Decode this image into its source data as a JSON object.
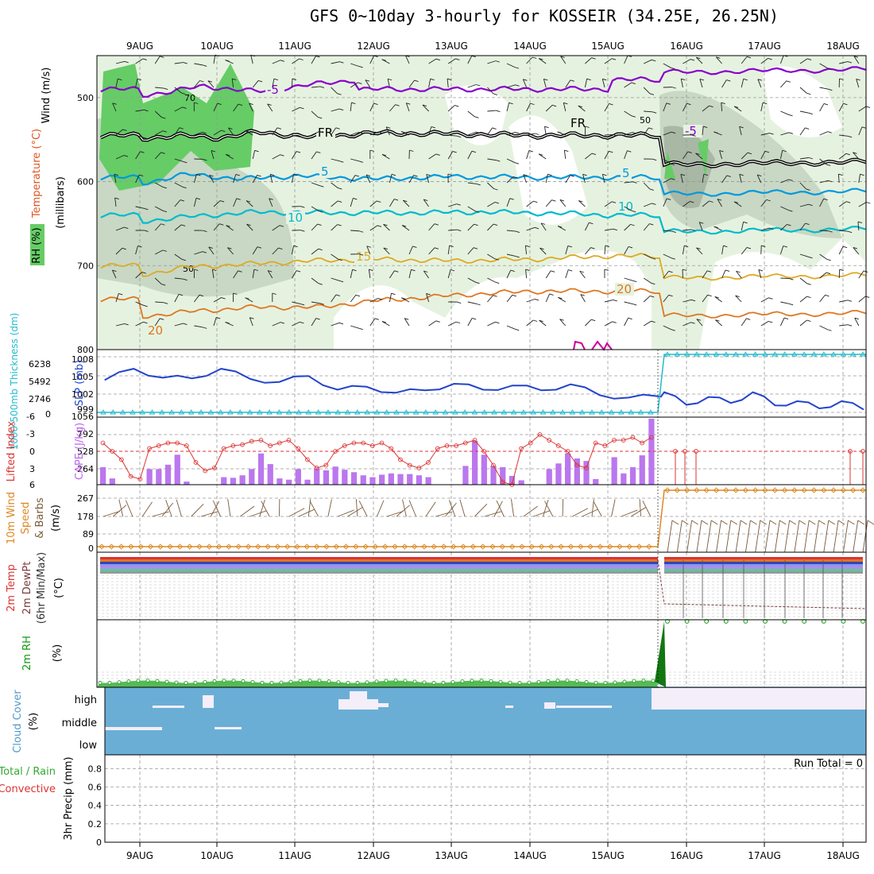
{
  "title": "GFS 0~10day 3-hourly for KOSSEIR (34.25E, 26.25N)",
  "colors": {
    "rh_light": "#e6f2e0",
    "rh_mid": "#c8d8c4",
    "rh_dark": "#a8b8a4",
    "rh_sat": "#66cc66",
    "temp_purple": "#8800cc",
    "temp_blue": "#0099dd",
    "temp_cyan": "#00bbcc",
    "temp_gold": "#ddaa22",
    "temp_orange": "#dd7722",
    "freeze": "#000000",
    "slp": "#2244cc",
    "thick": "#22bbcc",
    "cape": "#bb77ee",
    "li": "#dd3333",
    "wind": "#dd8822",
    "rh2m": "#119911",
    "cloud": "#6aaed6",
    "cloud_gap": "#f4eef8"
  },
  "chart_data": {
    "type": "meteogram",
    "dates": [
      "9AUG",
      "10AUG",
      "11AUG",
      "12AUG",
      "13AUG",
      "14AUG",
      "15AUG",
      "16AUG",
      "17AUG",
      "18AUG"
    ],
    "panels": [
      {
        "id": "upper_air",
        "labels": {
          "wind": "Wind (m/s)",
          "temp": "Temperature (°C)",
          "rh": "RH (%)",
          "unit": "(millibars)"
        },
        "yticks": [
          500,
          600,
          700,
          800
        ],
        "ylim": [
          450,
          800
        ],
        "contours": {
          "freezing": {
            "label": "FR",
            "before": 545,
            "after": 580
          },
          "iso_minus5": {
            "label": "-5",
            "before": 490,
            "after": 470
          },
          "iso_5": {
            "label": "5",
            "before": 595,
            "after": 615
          },
          "iso_10": {
            "label": "10",
            "before": 640,
            "after": 660
          },
          "iso_15": {
            "label": "15",
            "before": 700,
            "after": 715
          },
          "iso_20": {
            "label": "20",
            "before": 740,
            "after": 760
          }
        },
        "rh_labels": [
          "70",
          "50",
          "50"
        ]
      },
      {
        "id": "slp_thickness",
        "labels": {
          "slp": "SLP (mb)",
          "thick": "1000-500mb Thickness (dm)"
        },
        "yticks_left": [
          "6238",
          "5492",
          "2746",
          "0"
        ],
        "yticks_right": [
          "1008",
          "1005",
          "1002",
          "999"
        ],
        "slp": [
          1004.5,
          1006.4,
          1004.9,
          1004.8,
          1006.4,
          1004.7,
          1004.2,
          1005.2,
          1002.9,
          1003.4,
          1002.4,
          1002.8,
          1003.9,
          1002.9,
          1003.6,
          1002.8,
          1003.8,
          1002.0,
          1001.6,
          1001.8,
          1002.5,
          1000.4,
          1001.7,
          1000.7,
          1002.5,
          1000.3,
          1001.0,
          999.8,
          1001.0,
          999.6
        ]
      },
      {
        "id": "cape_li",
        "labels": {
          "cape": "CAPE (J/kg)",
          "li": "Lifted Index"
        },
        "yticks_left": [
          "-6",
          "-3",
          "0",
          "3",
          "6"
        ],
        "yticks_right": [
          "1056",
          "792",
          "528",
          "264"
        ],
        "cape": [
          280,
          100,
          0,
          0,
          0,
          250,
          250,
          320,
          480,
          50,
          0,
          0,
          0,
          120,
          110,
          150,
          250,
          500,
          330,
          100,
          80,
          250,
          80,
          260,
          230,
          290,
          240,
          200,
          150,
          120,
          160,
          180,
          170,
          170,
          150,
          120,
          0,
          0,
          0,
          300,
          700,
          480,
          300,
          280,
          140,
          70,
          0,
          0,
          250,
          340,
          500,
          420,
          380,
          90,
          0,
          440,
          180,
          280,
          470,
          1056
        ],
        "li": [
          -1.5,
          0,
          1.5,
          4.5,
          5,
          -0.5,
          -1,
          -1.5,
          -1.5,
          -1,
          2,
          3.5,
          3,
          -0.5,
          -1,
          -1.2,
          -1.8,
          -2,
          -1,
          -1.5,
          -2,
          -0.5,
          1.5,
          3,
          2.5,
          0,
          -1,
          -1.5,
          -1.5,
          -1,
          -1.5,
          -0.5,
          1.5,
          2.5,
          3,
          2,
          -0.5,
          -1,
          -1,
          -1.5,
          -2,
          0,
          2.5,
          5.5,
          6,
          -0.5,
          -1.5,
          -3,
          -2,
          -1,
          0,
          2.5,
          3,
          -1.5,
          -1,
          -2,
          -2,
          -2.5,
          -1.5,
          -2.5
        ]
      },
      {
        "id": "wind10m",
        "labels": {
          "wind": "10m Wind",
          "speed": "Speed",
          "barbs": "& Barbs",
          "unit": "(m/s)"
        },
        "yticks": [
          "267",
          "178",
          "89",
          "0"
        ],
        "after": 267
      },
      {
        "id": "t2m",
        "labels": {
          "temp": "2m Temp",
          "dewpt": "2m DewPt",
          "minmax": "(6hr Min/Max)",
          "unit": "(°C)"
        }
      },
      {
        "id": "rh2m",
        "labels": {
          "rh": "2m RH",
          "unit": "(%)"
        }
      },
      {
        "id": "cloud",
        "labels": {
          "cloud": "Cloud Cover",
          "unit": "(%)"
        },
        "levels": [
          "high",
          "middle",
          "low"
        ]
      },
      {
        "id": "precip",
        "labels": {
          "total": "Total / Rain",
          "convective": "Convective",
          "precip": "3hr Precip (mm)"
        },
        "run_total": "Run Total = 0",
        "yticks": [
          "0.8",
          "0.6",
          "0.4",
          "0.2",
          "0"
        ]
      }
    ]
  }
}
